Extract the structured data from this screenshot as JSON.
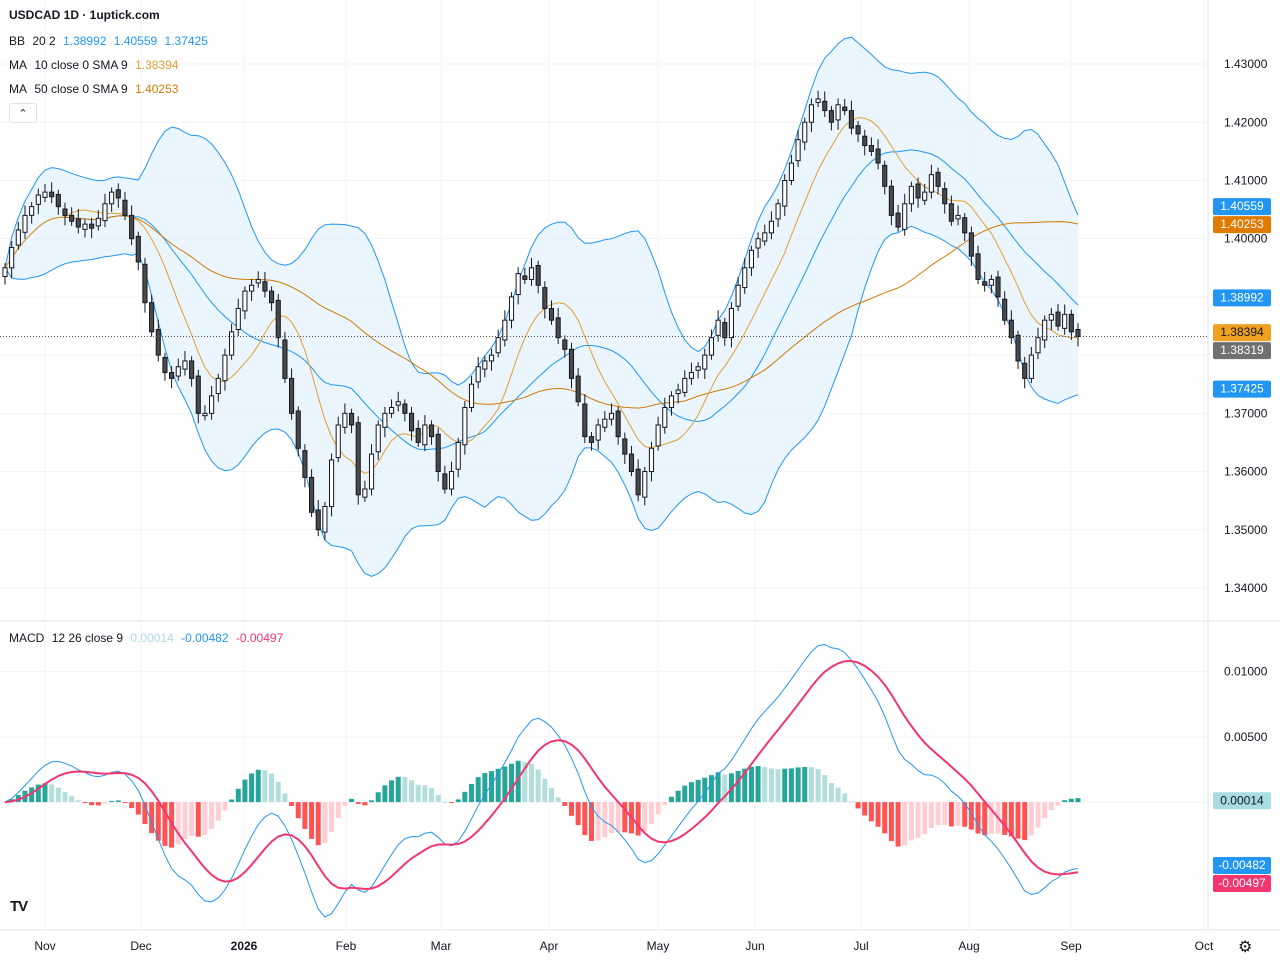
{
  "title": "USDCAD 1D · 1uptick.com",
  "legend": {
    "bb": {
      "label": "BB",
      "params": "20 2",
      "v1": "1.38992",
      "v2": "1.40559",
      "v3": "1.37425",
      "color": "#2196f3"
    },
    "ma10": {
      "label": "MA",
      "params": "10 close 0 SMA 9",
      "value": "1.38394",
      "color": "#e0a030"
    },
    "ma50": {
      "label": "MA",
      "params": "50 close 0 SMA 9",
      "value": "1.40253",
      "color": "#d07a00"
    },
    "macd": {
      "label": "MACD",
      "params": "12 26 close 9",
      "v1": "0.00014",
      "v2": "-0.00482",
      "v3": "-0.00497",
      "c1": "#a8dde3",
      "c2": "#2196f3",
      "c3": "#f23670"
    }
  },
  "icons": {
    "collapse": "chevron-up-icon",
    "logo": "tradingview-logo-icon",
    "settings": "gear-icon"
  },
  "ui": {
    "collapse_glyph": "⌃",
    "logo_text": "TV",
    "gear_glyph": "⚙"
  },
  "chart_data": {
    "type": "candlestick",
    "price_axis": {
      "ticks": [
        "1.43000",
        "1.42000",
        "1.41000",
        "1.40000",
        "1.39000",
        "1.38000",
        "1.37000",
        "1.36000",
        "1.35000",
        "1.34000"
      ],
      "ylim": [
        1.3345,
        1.441
      ]
    },
    "macd_axis": {
      "ticks": [
        "0.01000",
        "0.00500",
        "0.00000"
      ],
      "ylim": [
        -0.0098,
        0.0138
      ]
    },
    "x_labels": [
      "Nov",
      "Dec",
      "2026",
      "Feb",
      "Mar",
      "Apr",
      "May",
      "Jun",
      "Jul",
      "Aug",
      "Sep",
      "Oct"
    ],
    "price_badges": [
      {
        "text": "1.40559",
        "value": 1.40559,
        "bg": "#2196f3",
        "fg": "#ffffff"
      },
      {
        "text": "1.40253",
        "value": 1.40253,
        "bg": "#e07a00",
        "fg": "#ffffff"
      },
      {
        "text": "1.38992",
        "value": 1.38992,
        "bg": "#2196f3",
        "fg": "#ffffff"
      },
      {
        "text": "1.38394",
        "value": 1.38394,
        "bg": "#f0a020",
        "fg": "#131722"
      },
      {
        "text": "1.38319",
        "value": 1.38319,
        "bg": "#707070",
        "fg": "#ffffff"
      },
      {
        "text": "1.37425",
        "value": 1.37425,
        "bg": "#2196f3",
        "fg": "#ffffff"
      }
    ],
    "macd_badges": [
      {
        "text": "0.00014",
        "value": 0.00014,
        "bg": "#a8dde3",
        "fg": "#131722"
      },
      {
        "text": "-0.00482",
        "value": -0.00482,
        "bg": "#2196f3",
        "fg": "#ffffff"
      },
      {
        "text": "-0.00497",
        "value": -0.00497,
        "bg": "#f23670",
        "fg": "#ffffff"
      }
    ],
    "last_price": 1.38319,
    "close": [
      1.395,
      1.3985,
      1.4015,
      1.404,
      1.4055,
      1.4075,
      1.408,
      1.4072,
      1.4055,
      1.404,
      1.403,
      1.402,
      1.4025,
      1.4018,
      1.4035,
      1.406,
      1.408,
      1.407,
      1.404,
      1.4,
      1.396,
      1.389,
      1.384,
      1.38,
      1.377,
      1.376,
      1.378,
      1.379,
      1.376,
      1.37,
      1.37,
      1.373,
      1.376,
      1.38,
      1.384,
      1.388,
      1.391,
      1.392,
      1.393,
      1.391,
      1.389,
      1.383,
      1.376,
      1.37,
      1.364,
      1.359,
      1.353,
      1.35,
      1.354,
      1.362,
      1.368,
      1.37,
      1.368,
      1.356,
      1.357,
      1.363,
      1.368,
      1.37,
      1.371,
      1.372,
      1.37,
      1.367,
      1.365,
      1.368,
      1.366,
      1.36,
      1.357,
      1.36,
      1.365,
      1.371,
      1.375,
      1.378,
      1.379,
      1.38,
      1.383,
      1.386,
      1.39,
      1.394,
      1.393,
      1.395,
      1.392,
      1.388,
      1.386,
      1.383,
      1.381,
      1.376,
      1.372,
      1.366,
      1.365,
      1.368,
      1.369,
      1.37,
      1.366,
      1.363,
      1.36,
      1.356,
      1.36,
      1.364,
      1.368,
      1.371,
      1.373,
      1.374,
      1.376,
      1.377,
      1.378,
      1.38,
      1.383,
      1.386,
      1.383,
      1.388,
      1.392,
      1.395,
      1.398,
      1.4,
      1.401,
      1.403,
      1.406,
      1.41,
      1.413,
      1.417,
      1.42,
      1.423,
      1.424,
      1.422,
      1.42,
      1.423,
      1.422,
      1.419,
      1.418,
      1.416,
      1.415,
      1.413,
      1.409,
      1.404,
      1.402,
      1.406,
      1.409,
      1.407,
      1.408,
      1.411,
      1.409,
      1.406,
      1.403,
      1.404,
      1.401,
      1.397,
      1.393,
      1.392,
      1.393,
      1.39,
      1.386,
      1.383,
      1.379,
      1.376,
      1.38,
      1.383,
      1.386,
      1.387,
      1.385,
      1.387,
      1.384,
      1.3832
    ]
  }
}
